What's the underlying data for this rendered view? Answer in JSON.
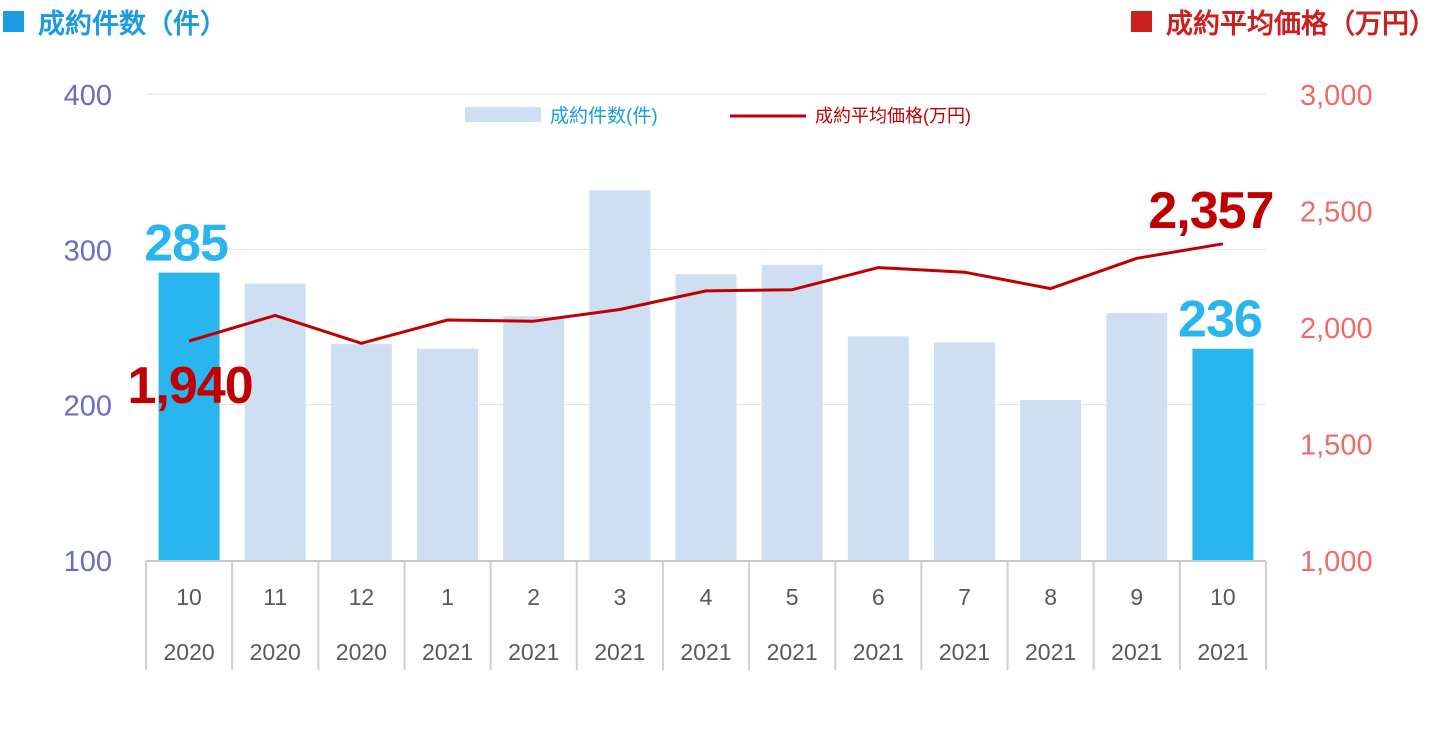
{
  "titles": {
    "left": "成約件数（件）",
    "right": "成約平均価格（万円）"
  },
  "colors": {
    "bar": "#cfdff3",
    "bar_highlight": "#29b6ef",
    "line": "#c00000",
    "left_axis": "#6b6bc2",
    "right_axis": "#f06a6a",
    "left_title": "#1a9be0",
    "right_title": "#cc1f1f"
  },
  "chart_data": {
    "type": "bar+line",
    "categories": [
      {
        "month": "10",
        "year": "2020"
      },
      {
        "month": "11",
        "year": "2020"
      },
      {
        "month": "12",
        "year": "2020"
      },
      {
        "month": "1",
        "year": "2021"
      },
      {
        "month": "2",
        "year": "2021"
      },
      {
        "month": "3",
        "year": "2021"
      },
      {
        "month": "4",
        "year": "2021"
      },
      {
        "month": "5",
        "year": "2021"
      },
      {
        "month": "6",
        "year": "2021"
      },
      {
        "month": "7",
        "year": "2021"
      },
      {
        "month": "8",
        "year": "2021"
      },
      {
        "month": "9",
        "year": "2021"
      },
      {
        "month": "10",
        "year": "2021"
      }
    ],
    "series": [
      {
        "name": "成約件数(件)",
        "type": "bar",
        "axis": "left",
        "values": [
          285,
          278,
          239,
          236,
          257,
          338,
          284,
          290,
          244,
          240,
          203,
          259,
          236
        ],
        "highlight_indices": [
          0,
          12
        ]
      },
      {
        "name": "成約平均価格(万円)",
        "type": "line",
        "axis": "right",
        "values": [
          1940,
          2050,
          1930,
          2030,
          2025,
          2075,
          2155,
          2160,
          2255,
          2235,
          2165,
          2295,
          2357
        ]
      }
    ],
    "left_axis": {
      "min": 100,
      "max": 400,
      "ticks": [
        "100",
        "200",
        "300",
        "400"
      ]
    },
    "right_axis": {
      "min": 1000,
      "max": 3000,
      "ticks": [
        "1,000",
        "1,500",
        "2,000",
        "2,500",
        "3,000"
      ]
    },
    "legend_placement": "top-center",
    "grid": "horizontal",
    "callouts": [
      {
        "label": "285",
        "series": "bar",
        "index": 0
      },
      {
        "label": "236",
        "series": "bar",
        "index": 12
      },
      {
        "label": "1,940",
        "series": "line",
        "index": 0
      },
      {
        "label": "2,357",
        "series": "line",
        "index": 12
      }
    ]
  }
}
